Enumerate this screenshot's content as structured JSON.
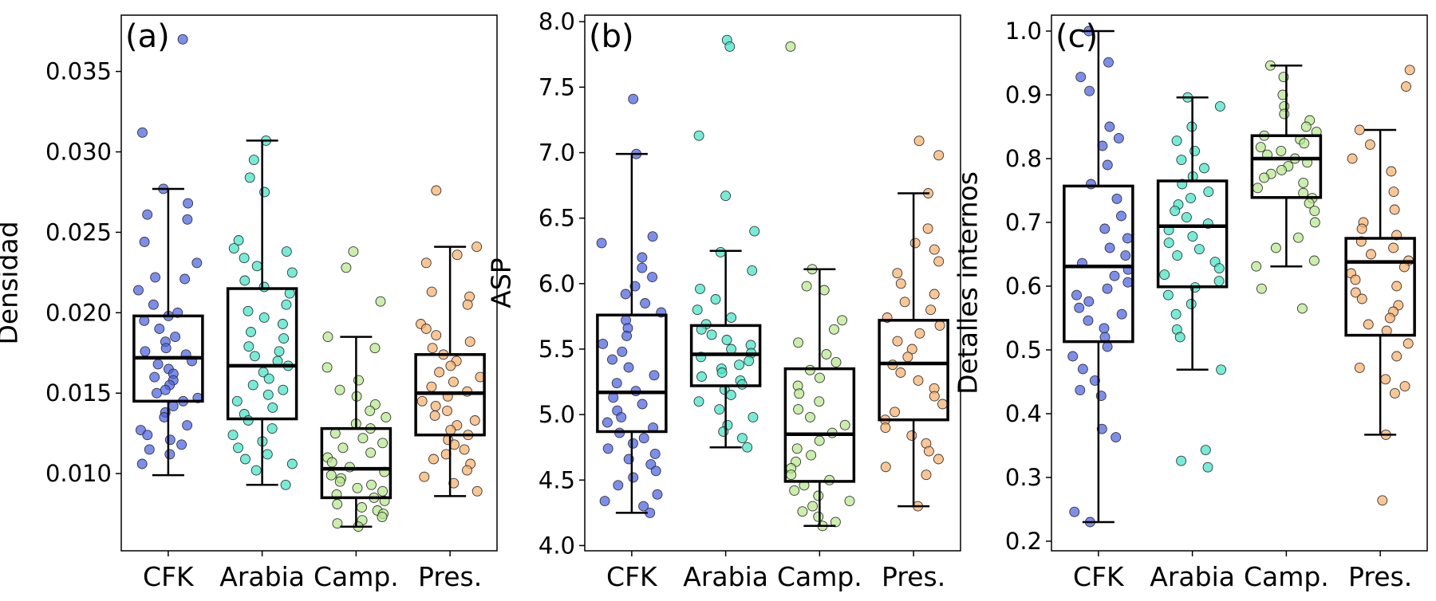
{
  "colors": {
    "CFK": "#4a62e6",
    "Arabia": "#3fe6c8",
    "Camp.": "#b6e98a",
    "Pres.": "#fbb06a",
    "box": "#000000"
  },
  "chart_data": [
    {
      "type": "box",
      "panel": "(a)",
      "ylabel": "Densidad",
      "categories": [
        "CFK",
        "Arabia",
        "Camp.",
        "Pres."
      ],
      "ylim": [
        0.0052,
        0.0385
      ],
      "yticks": [
        "0.010",
        "0.015",
        "0.020",
        "0.025",
        "0.030",
        "0.035"
      ],
      "boxes": [
        {
          "whislo": 0.0099,
          "q1": 0.0145,
          "med": 0.0172,
          "q3": 0.0198,
          "whishi": 0.0277
        },
        {
          "whislo": 0.0093,
          "q1": 0.0134,
          "med": 0.0167,
          "q3": 0.0215,
          "whishi": 0.0307
        },
        {
          "whislo": 0.0067,
          "q1": 0.0085,
          "med": 0.0103,
          "q3": 0.0128,
          "whishi": 0.0185
        },
        {
          "whislo": 0.0086,
          "q1": 0.0124,
          "med": 0.015,
          "q3": 0.0174,
          "whishi": 0.0241
        }
      ],
      "points": [
        [
          0.037,
          0.0312,
          0.0277,
          0.0268,
          0.0261,
          0.0258,
          0.0244,
          0.0231,
          0.0222,
          0.0221,
          0.0214,
          0.0205,
          0.02,
          0.0198,
          0.0195,
          0.019,
          0.0185,
          0.0182,
          0.0178,
          0.0176,
          0.0174,
          0.017,
          0.0168,
          0.0165,
          0.0162,
          0.016,
          0.0158,
          0.0155,
          0.0152,
          0.015,
          0.0147,
          0.0145,
          0.0142,
          0.0138,
          0.0135,
          0.013,
          0.0127,
          0.0124,
          0.0121,
          0.0118,
          0.0115,
          0.0112,
          0.0106
        ],
        [
          0.0307,
          0.0295,
          0.0284,
          0.0275,
          0.0245,
          0.024,
          0.0238,
          0.0234,
          0.0229,
          0.0225,
          0.022,
          0.0216,
          0.0212,
          0.0205,
          0.0201,
          0.0197,
          0.0193,
          0.0188,
          0.0184,
          0.0179,
          0.0176,
          0.0173,
          0.017,
          0.0167,
          0.0163,
          0.0159,
          0.0155,
          0.0152,
          0.0149,
          0.0145,
          0.0141,
          0.0137,
          0.0133,
          0.0128,
          0.0124,
          0.012,
          0.0116,
          0.0112,
          0.0109,
          0.0106,
          0.0102,
          0.0093
        ],
        [
          0.0238,
          0.0228,
          0.0207,
          0.0185,
          0.0178,
          0.0166,
          0.0158,
          0.0152,
          0.0148,
          0.0143,
          0.0139,
          0.0135,
          0.0131,
          0.0128,
          0.0125,
          0.0122,
          0.0119,
          0.0116,
          0.0113,
          0.011,
          0.0107,
          0.0104,
          0.0101,
          0.0099,
          0.0097,
          0.0095,
          0.0093,
          0.0091,
          0.0089,
          0.0087,
          0.0085,
          0.0083,
          0.0081,
          0.0079,
          0.0077,
          0.0075,
          0.0073,
          0.0071,
          0.0069,
          0.0067
        ],
        [
          0.0276,
          0.0241,
          0.0236,
          0.0231,
          0.0213,
          0.021,
          0.0205,
          0.0193,
          0.019,
          0.0186,
          0.0182,
          0.0178,
          0.0174,
          0.017,
          0.0167,
          0.0163,
          0.016,
          0.0157,
          0.0154,
          0.0151,
          0.0148,
          0.0145,
          0.0142,
          0.0139,
          0.0136,
          0.0133,
          0.013,
          0.0127,
          0.0124,
          0.0121,
          0.0118,
          0.0115,
          0.0112,
          0.0109,
          0.0106,
          0.0102,
          0.0098,
          0.0094,
          0.0089
        ]
      ]
    },
    {
      "type": "box",
      "panel": "(b)",
      "ylabel": "ASP",
      "categories": [
        "CFK",
        "Arabia",
        "Camp.",
        "Pres."
      ],
      "ylim": [
        3.96,
        8.05
      ],
      "yticks": [
        "4.0",
        "4.5",
        "5.0",
        "5.5",
        "6.0",
        "6.5",
        "7.0",
        "7.5",
        "8.0"
      ],
      "boxes": [
        {
          "whislo": 4.25,
          "q1": 4.87,
          "med": 5.17,
          "q3": 5.76,
          "whishi": 6.99
        },
        {
          "whislo": 4.75,
          "q1": 5.22,
          "med": 5.46,
          "q3": 5.68,
          "whishi": 6.25
        },
        {
          "whislo": 4.15,
          "q1": 4.49,
          "med": 4.85,
          "q3": 5.35,
          "whishi": 6.11
        },
        {
          "whislo": 4.3,
          "q1": 4.96,
          "med": 5.39,
          "q3": 5.72,
          "whishi": 6.69
        }
      ],
      "points": [
        [
          7.41,
          6.99,
          6.36,
          6.31,
          6.2,
          6.12,
          6.05,
          5.98,
          5.92,
          5.85,
          5.78,
          5.72,
          5.66,
          5.6,
          5.54,
          5.48,
          5.42,
          5.36,
          5.3,
          5.24,
          5.18,
          5.13,
          5.08,
          5.03,
          4.98,
          4.94,
          4.9,
          4.86,
          4.82,
          4.78,
          4.74,
          4.7,
          4.66,
          4.62,
          4.57,
          4.52,
          4.46,
          4.39,
          4.34,
          4.3,
          4.25
        ],
        [
          7.86,
          7.81,
          7.13,
          6.67,
          6.4,
          6.24,
          6.1,
          5.96,
          5.88,
          5.8,
          5.74,
          5.69,
          5.65,
          5.61,
          5.57,
          5.53,
          5.5,
          5.47,
          5.44,
          5.41,
          5.38,
          5.35,
          5.32,
          5.29,
          5.26,
          5.23,
          5.19,
          5.15,
          5.1,
          5.04,
          4.98,
          4.92,
          4.87,
          4.82,
          4.75
        ],
        [
          7.81,
          6.11,
          5.98,
          5.95,
          5.72,
          5.65,
          5.55,
          5.46,
          5.4,
          5.34,
          5.28,
          5.22,
          5.16,
          5.1,
          5.04,
          4.98,
          4.92,
          4.86,
          4.8,
          4.74,
          4.69,
          4.64,
          4.59,
          4.54,
          4.5,
          4.46,
          4.42,
          4.38,
          4.34,
          4.3,
          4.26,
          4.22,
          4.18,
          4.15
        ],
        [
          7.09,
          6.98,
          6.69,
          6.42,
          6.31,
          6.26,
          6.17,
          6.08,
          6.0,
          5.92,
          5.86,
          5.8,
          5.74,
          5.68,
          5.62,
          5.56,
          5.5,
          5.44,
          5.38,
          5.32,
          5.26,
          5.2,
          5.14,
          5.08,
          5.02,
          4.96,
          4.9,
          4.84,
          4.78,
          4.72,
          4.66,
          4.6,
          4.54,
          4.3
        ]
      ]
    },
    {
      "type": "box",
      "panel": "(c)",
      "ylabel": "Detalles internos",
      "categories": [
        "CFK",
        "Arabia",
        "Camp.",
        "Pres."
      ],
      "ylim": [
        0.185,
        1.025
      ],
      "yticks": [
        "0.2",
        "0.3",
        "0.4",
        "0.5",
        "0.6",
        "0.7",
        "0.8",
        "0.9",
        "1.0"
      ],
      "boxes": [
        {
          "whislo": 0.23,
          "q1": 0.513,
          "med": 0.631,
          "q3": 0.757,
          "whishi": 1.0
        },
        {
          "whislo": 0.469,
          "q1": 0.599,
          "med": 0.694,
          "q3": 0.765,
          "whishi": 0.896
        },
        {
          "whislo": 0.631,
          "q1": 0.739,
          "med": 0.8,
          "q3": 0.836,
          "whishi": 0.946
        },
        {
          "whislo": 0.367,
          "q1": 0.523,
          "med": 0.638,
          "q3": 0.675,
          "whishi": 0.845
        }
      ],
      "points": [
        [
          1.0,
          0.951,
          0.928,
          0.906,
          0.85,
          0.832,
          0.82,
          0.79,
          0.76,
          0.737,
          0.71,
          0.69,
          0.675,
          0.66,
          0.648,
          0.636,
          0.626,
          0.616,
          0.606,
          0.596,
          0.586,
          0.576,
          0.566,
          0.556,
          0.546,
          0.534,
          0.52,
          0.505,
          0.49,
          0.47,
          0.452,
          0.437,
          0.428,
          0.376,
          0.363,
          0.246,
          0.23
        ],
        [
          0.896,
          0.882,
          0.85,
          0.828,
          0.812,
          0.798,
          0.785,
          0.772,
          0.76,
          0.748,
          0.738,
          0.728,
          0.718,
          0.708,
          0.698,
          0.688,
          0.678,
          0.668,
          0.658,
          0.648,
          0.638,
          0.628,
          0.618,
          0.608,
          0.598,
          0.586,
          0.572,
          0.556,
          0.532,
          0.52,
          0.469,
          0.343,
          0.326,
          0.316
        ],
        [
          0.946,
          0.928,
          0.9,
          0.882,
          0.87,
          0.86,
          0.85,
          0.842,
          0.836,
          0.83,
          0.824,
          0.818,
          0.812,
          0.806,
          0.8,
          0.794,
          0.788,
          0.782,
          0.776,
          0.77,
          0.762,
          0.754,
          0.746,
          0.738,
          0.73,
          0.718,
          0.7,
          0.676,
          0.66,
          0.64,
          0.631,
          0.596,
          0.565
        ],
        [
          0.939,
          0.913,
          0.845,
          0.822,
          0.8,
          0.78,
          0.748,
          0.72,
          0.7,
          0.69,
          0.68,
          0.67,
          0.66,
          0.65,
          0.64,
          0.63,
          0.62,
          0.61,
          0.6,
          0.59,
          0.58,
          0.57,
          0.56,
          0.55,
          0.54,
          0.53,
          0.51,
          0.49,
          0.472,
          0.454,
          0.443,
          0.432,
          0.367,
          0.264
        ]
      ]
    }
  ]
}
